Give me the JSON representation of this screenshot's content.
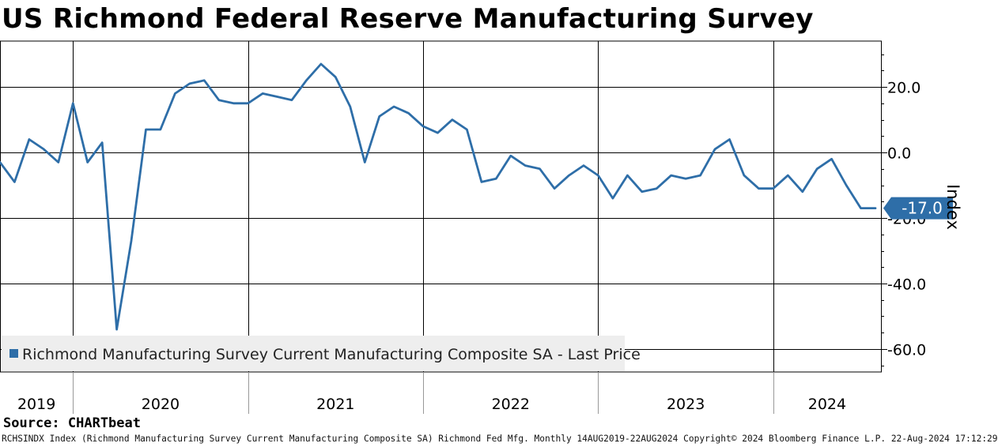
{
  "title": "US Richmond Federal Reserve Manufacturing Survey",
  "source": "Source: CHARTbeat",
  "footer": "RCHSINDX Index (Richmond Manufacturing Survey Current Manufacturing Composite SA) Richmond Fed Mfg.  Monthly 14AUG2019-22AUG2024 Copyright© 2024 Bloomberg Finance L.P. 22-Aug-2024 17:12:29",
  "colors": {
    "series": "#2e6ea8",
    "grid": "#000000",
    "legend_bg": "#eeeeee",
    "background": "#ffffff"
  },
  "chart_data": {
    "type": "line",
    "title": "US Richmond Federal Reserve Manufacturing Survey",
    "ylabel": "Index",
    "xlabel": "",
    "ylim": [
      -67,
      34
    ],
    "yticks": [
      20,
      0,
      -20,
      -40,
      -60
    ],
    "ytick_labels": [
      "20.0",
      "0.0",
      "-20.0",
      "-40.0",
      "-60.0"
    ],
    "year_labels": [
      "2019",
      "2020",
      "2021",
      "2022",
      "2023",
      "2024"
    ],
    "grid": true,
    "legend_position": "bottom-left",
    "last_value_label": "-17.0",
    "series": [
      {
        "name": "Richmond Manufacturing Survey Current Manufacturing Composite SA - Last Price",
        "x": [
          "2019-08",
          "2019-09",
          "2019-10",
          "2019-11",
          "2019-12",
          "2020-01",
          "2020-02",
          "2020-03",
          "2020-04",
          "2020-05",
          "2020-06",
          "2020-07",
          "2020-08",
          "2020-09",
          "2020-10",
          "2020-11",
          "2020-12",
          "2021-01",
          "2021-02",
          "2021-03",
          "2021-04",
          "2021-05",
          "2021-06",
          "2021-07",
          "2021-08",
          "2021-09",
          "2021-10",
          "2021-11",
          "2021-12",
          "2022-01",
          "2022-02",
          "2022-03",
          "2022-04",
          "2022-05",
          "2022-06",
          "2022-07",
          "2022-08",
          "2022-09",
          "2022-10",
          "2022-11",
          "2022-12",
          "2023-01",
          "2023-02",
          "2023-03",
          "2023-04",
          "2023-05",
          "2023-06",
          "2023-07",
          "2023-08",
          "2023-09",
          "2023-10",
          "2023-11",
          "2023-12",
          "2024-01",
          "2024-02",
          "2024-03",
          "2024-04",
          "2024-05",
          "2024-06",
          "2024-07",
          "2024-08"
        ],
        "values": [
          -3,
          -9,
          4,
          1,
          -3,
          15,
          -3,
          3,
          -54,
          -27,
          7,
          7,
          18,
          21,
          22,
          16,
          15,
          15,
          18,
          17,
          16,
          22,
          27,
          23,
          14,
          -3,
          11,
          14,
          12,
          8,
          6,
          10,
          7,
          -9,
          -8,
          -1,
          -4,
          -5,
          -11,
          -7,
          -4,
          -7,
          -14,
          -7,
          -12,
          -11,
          -7,
          -8,
          -7,
          1,
          4,
          -7,
          -11,
          -11,
          -7,
          -12,
          -5,
          -2,
          -10,
          -17,
          -17
        ]
      }
    ]
  }
}
